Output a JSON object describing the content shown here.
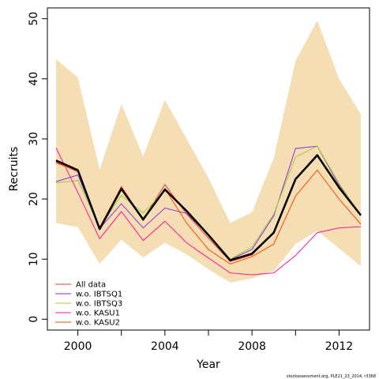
{
  "chart_data": {
    "type": "line",
    "title": "",
    "xlabel": "Year",
    "ylabel": "Recruits",
    "xlim": [
      1998.6,
      2013.4
    ],
    "ylim": [
      -1.8,
      51.8
    ],
    "x_ticks": [
      2000,
      2002,
      2004,
      2006,
      2008,
      2010,
      2012
    ],
    "x_tick_labels": [
      "2000",
      "",
      "2004",
      "",
      "2008",
      "",
      "2012"
    ],
    "y_ticks": [
      0,
      10,
      20,
      30,
      40,
      50
    ],
    "y_tick_labels": [
      "0",
      "10",
      "20",
      "30",
      "40",
      "50"
    ],
    "grid": false,
    "legend_position": "bottom-left",
    "x": [
      1999,
      2000,
      2001,
      2002,
      2003,
      2004,
      2005,
      2006,
      2007,
      2008,
      2009,
      2010,
      2011,
      2012,
      2013
    ],
    "band": {
      "color": "#f5deb3",
      "upper": [
        43.3,
        40.2,
        24.9,
        35.8,
        27.1,
        36.5,
        30.0,
        23.5,
        16.0,
        17.8,
        26.8,
        43.0,
        49.7,
        40.0,
        34.1
      ],
      "lower": [
        16.0,
        15.3,
        9.2,
        13.2,
        10.3,
        12.7,
        10.8,
        8.3,
        6.1,
        6.8,
        8.0,
        12.5,
        14.7,
        11.8,
        8.8
      ]
    },
    "main_series": {
      "color": "#000000",
      "values": [
        26.4,
        24.8,
        15.0,
        21.7,
        16.6,
        21.6,
        18.0,
        14.0,
        9.8,
        10.9,
        14.4,
        23.3,
        27.3,
        21.9,
        17.3
      ]
    },
    "series": [
      {
        "name": "All data",
        "color": "#ff3333",
        "values": [
          26.2,
          24.5,
          15.0,
          22.1,
          16.6,
          22.4,
          17.5,
          13.5,
          9.6,
          10.7,
          14.4,
          23.2,
          27.1,
          22.0,
          17.3
        ]
      },
      {
        "name": "w.o. IBTSQ1",
        "color": "#8a2be2",
        "values": [
          22.9,
          24.0,
          15.1,
          19.2,
          15.2,
          18.5,
          17.6,
          14.0,
          9.9,
          11.6,
          17.2,
          28.4,
          28.8,
          22.3,
          17.3
        ]
      },
      {
        "name": "w.o. IBTSQ3",
        "color": "#9acd32",
        "values": [
          22.7,
          23.1,
          15.2,
          20.6,
          17.7,
          21.3,
          18.2,
          14.2,
          10.0,
          12.0,
          17.5,
          27.0,
          28.8,
          22.6,
          17.3
        ]
      },
      {
        "name": "w.o. KASU1",
        "color": "#ff1493",
        "values": [
          28.5,
          21.1,
          13.4,
          17.9,
          13.1,
          16.3,
          12.7,
          10.2,
          7.7,
          7.4,
          7.7,
          10.6,
          14.4,
          15.2,
          15.4
        ]
      },
      {
        "name": "w.o. KASU2",
        "color": "#ff4500",
        "values": [
          26.0,
          24.7,
          15.3,
          22.0,
          16.4,
          21.7,
          16.0,
          11.6,
          9.2,
          10.4,
          12.5,
          20.5,
          24.8,
          20.0,
          15.8
        ]
      }
    ],
    "footnote": "stockassessment.org, PLE21_23_2014, r3368"
  }
}
